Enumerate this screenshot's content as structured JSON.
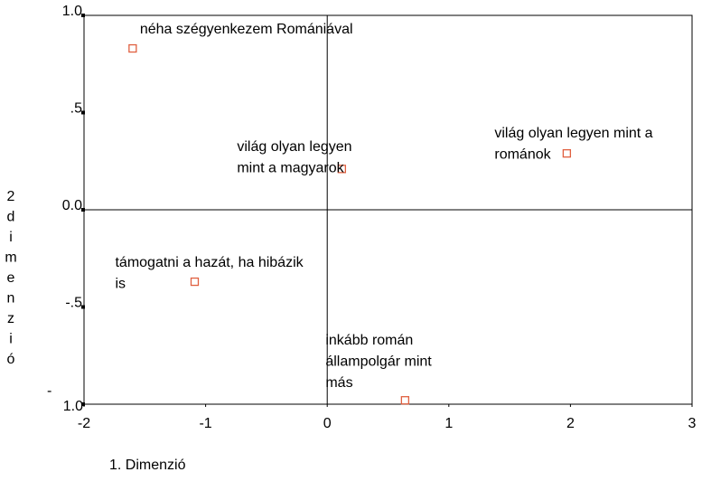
{
  "chart_data": {
    "type": "scatter",
    "x_label": "1. Dimenzió",
    "y_label": "2 dimenzió",
    "points": [
      {
        "label": [
          "néha szégyenkezem Romániával"
        ],
        "x": -1.6,
        "y": 0.83
      },
      {
        "label": [
          "világ olyan legyen",
          "mint a magyarok"
        ],
        "x": 0.12,
        "y": 0.21
      },
      {
        "label": [
          "világ olyan legyen mint a",
          "románok"
        ],
        "x": 1.97,
        "y": 0.29
      },
      {
        "label": [
          "támogatni a hazát, ha hibázik",
          "is"
        ],
        "x": -1.09,
        "y": -0.37
      },
      {
        "label": [
          "inkább román",
          "állampolgár mint",
          "más"
        ],
        "x": 0.64,
        "y": -0.98
      }
    ],
    "color": "#e06040",
    "xlim": [
      -2,
      3
    ],
    "xticks": [
      -2,
      -1,
      0,
      1,
      2,
      3
    ],
    "ylim": [
      -1,
      1
    ],
    "yticks": [
      {
        "value": 1,
        "label": "1.0"
      },
      {
        "value": 0.5,
        "label": ".5"
      },
      {
        "value": 0,
        "label": "0.0"
      },
      {
        "value": -0.5,
        "label": "-.5"
      },
      {
        "value": -1,
        "label": "-1.0"
      }
    ],
    "reference_lines": {
      "x": 0,
      "y": 0
    }
  }
}
